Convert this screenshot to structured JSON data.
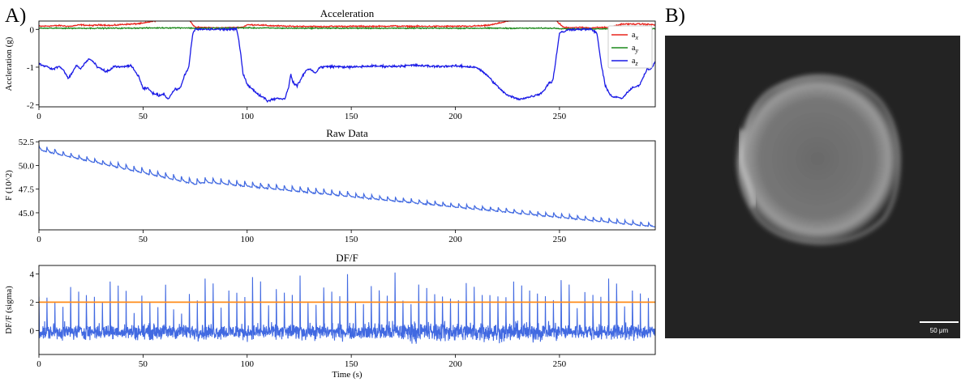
{
  "panel_labels": {
    "a": "A)",
    "b": "B)"
  },
  "colors": {
    "ax": "#e8231c",
    "ay": "#1c8a1c",
    "az": "#1a1ae6",
    "raw": "#4169e1",
    "dff": "#4169e1",
    "threshold": "#ff8c1a"
  },
  "microscopy": {
    "scale_bar_label": "50 μm",
    "description_icon": "cell-micrograph"
  },
  "chart_data": [
    {
      "type": "line",
      "title": "Acceleration",
      "xlabel": "",
      "ylabel": "Accleration (g)",
      "xlim": [
        0,
        296
      ],
      "ylim": [
        -2.05,
        0.22
      ],
      "xticks": [
        0,
        50,
        100,
        150,
        200,
        250
      ],
      "yticks": [
        0,
        -1,
        -2
      ],
      "legend": {
        "placement": "right",
        "entries": [
          {
            "name": "a",
            "sub": "x",
            "color": "#e8231c"
          },
          {
            "name": "a",
            "sub": "y",
            "color": "#1c8a1c"
          },
          {
            "name": "a",
            "sub": "z",
            "color": "#1a1ae6"
          }
        ]
      },
      "series": [
        {
          "name": "ax",
          "color": "#e8231c",
          "noise": 0.015,
          "x": [
            0,
            5,
            10,
            15,
            20,
            25,
            30,
            35,
            40,
            45,
            50,
            55,
            60,
            65,
            68,
            70,
            72,
            74,
            75,
            80,
            85,
            90,
            95,
            96,
            98,
            100,
            105,
            110,
            115,
            120,
            125,
            130,
            135,
            140,
            145,
            150,
            155,
            160,
            165,
            170,
            175,
            180,
            185,
            190,
            195,
            200,
            205,
            210,
            215,
            220,
            225,
            230,
            235,
            240,
            245,
            248,
            250,
            252,
            255,
            260,
            265,
            270,
            275,
            277,
            280,
            285,
            290,
            296
          ],
          "y": [
            0.08,
            0.09,
            0.1,
            0.08,
            0.12,
            0.1,
            0.12,
            0.1,
            0.13,
            0.14,
            0.16,
            0.22,
            0.26,
            0.3,
            0.33,
            0.32,
            0.28,
            0.12,
            0.05,
            0.05,
            0.04,
            0.04,
            0.05,
            0.05,
            0.06,
            0.12,
            0.12,
            0.1,
            0.09,
            0.08,
            0.08,
            0.08,
            0.07,
            0.08,
            0.08,
            0.08,
            0.08,
            0.08,
            0.08,
            0.09,
            0.08,
            0.08,
            0.08,
            0.08,
            0.08,
            0.08,
            0.08,
            0.09,
            0.1,
            0.15,
            0.22,
            0.25,
            0.27,
            0.32,
            0.3,
            0.25,
            0.15,
            0.05,
            0.05,
            0.05,
            0.04,
            0.05,
            0.05,
            0.1,
            0.14,
            0.14,
            0.14,
            0.12
          ]
        },
        {
          "name": "ay",
          "color": "#1c8a1c",
          "noise": 0.012,
          "x": [
            0,
            20,
            40,
            60,
            70,
            75,
            80,
            100,
            120,
            140,
            160,
            180,
            200,
            220,
            240,
            248,
            252,
            260,
            277,
            280,
            296
          ],
          "y": [
            0.03,
            0.03,
            0.03,
            0.04,
            0.04,
            0.03,
            0.03,
            0.04,
            0.03,
            0.03,
            0.03,
            0.03,
            0.03,
            0.03,
            0.03,
            0.03,
            0.02,
            0.01,
            0.02,
            0.02,
            0.02
          ]
        },
        {
          "name": "az",
          "color": "#1a1ae6",
          "noise": 0.025,
          "x": [
            0,
            2,
            4,
            6,
            8,
            10,
            12,
            14,
            16,
            18,
            20,
            22,
            24,
            26,
            28,
            30,
            32,
            34,
            36,
            40,
            44,
            46,
            48,
            50,
            52,
            55,
            58,
            60,
            62,
            65,
            68,
            70,
            72,
            73,
            74,
            75,
            80,
            85,
            90,
            95,
            96,
            97,
            98,
            100,
            102,
            105,
            108,
            110,
            112,
            115,
            118,
            120,
            121,
            122,
            124,
            126,
            128,
            130,
            133,
            135,
            140,
            150,
            160,
            170,
            180,
            190,
            200,
            210,
            215,
            220,
            222,
            225,
            228,
            230,
            235,
            240,
            242,
            244,
            245,
            246,
            247,
            248,
            250,
            255,
            260,
            265,
            268,
            270,
            272,
            274,
            276,
            278,
            280,
            282,
            285,
            288,
            290,
            292,
            294,
            296
          ],
          "y": [
            -0.92,
            -0.95,
            -0.98,
            -1.05,
            -1.02,
            -0.98,
            -1.1,
            -1.3,
            -1.15,
            -0.95,
            -1.05,
            -0.9,
            -0.78,
            -0.85,
            -1.0,
            -1.05,
            -1.12,
            -1.08,
            -0.98,
            -1.0,
            -0.95,
            -1.1,
            -1.25,
            -1.58,
            -1.55,
            -1.7,
            -1.75,
            -1.7,
            -1.85,
            -1.6,
            -1.55,
            -1.2,
            -1.0,
            -0.5,
            -0.1,
            0.0,
            0.0,
            0.0,
            0.0,
            0.0,
            -0.3,
            -0.7,
            -1.15,
            -1.45,
            -1.55,
            -1.72,
            -1.8,
            -1.9,
            -1.85,
            -1.82,
            -1.85,
            -1.5,
            -1.2,
            -1.4,
            -1.5,
            -1.3,
            -1.1,
            -1.05,
            -1.15,
            -1.0,
            -0.98,
            -1.0,
            -0.97,
            -0.98,
            -0.95,
            -0.98,
            -0.97,
            -1.0,
            -1.2,
            -1.5,
            -1.6,
            -1.75,
            -1.8,
            -1.85,
            -1.8,
            -1.72,
            -1.65,
            -1.5,
            -1.4,
            -1.42,
            -1.3,
            -0.9,
            -0.1,
            0.0,
            0.0,
            0.0,
            -0.1,
            -0.9,
            -1.5,
            -1.7,
            -1.8,
            -1.78,
            -1.85,
            -1.7,
            -1.55,
            -1.5,
            -1.3,
            -1.05,
            -1.05,
            -0.85
          ]
        }
      ]
    },
    {
      "type": "line",
      "title": "Raw Data",
      "xlabel": "",
      "ylabel": "F (10^2)",
      "xlim": [
        0,
        296
      ],
      "ylim": [
        43.2,
        52.6
      ],
      "xticks": [
        0,
        50,
        100,
        150,
        200,
        250
      ],
      "yticks": [
        45.0,
        47.5,
        50.0,
        52.5
      ],
      "ytick_labels": [
        "45.0",
        "47.5",
        "50.0",
        "52.5"
      ],
      "series": [
        {
          "name": "F",
          "color": "#4169e1",
          "baseline_x": [
            0,
            75,
            80,
            296
          ],
          "baseline_y": [
            51.6,
            48.0,
            48.2,
            43.5
          ],
          "spike_period_s": 3.8,
          "spike_height": 0.55
        }
      ]
    },
    {
      "type": "line",
      "title": "DF/F",
      "xlabel": "Time (s)",
      "ylabel": "DF/F (sigma)",
      "xlim": [
        0,
        296
      ],
      "ylim": [
        -1.7,
        4.6
      ],
      "xticks": [
        0,
        50,
        100,
        150,
        200,
        250
      ],
      "yticks": [
        0,
        2,
        4
      ],
      "threshold": {
        "value": 2.0,
        "color": "#ff8c1a"
      },
      "series": [
        {
          "name": "DF/F",
          "color": "#4169e1",
          "spike_period_s": 3.8,
          "spike_peak_range": [
            2.4,
            4.2
          ],
          "noise": 0.45
        }
      ]
    }
  ]
}
